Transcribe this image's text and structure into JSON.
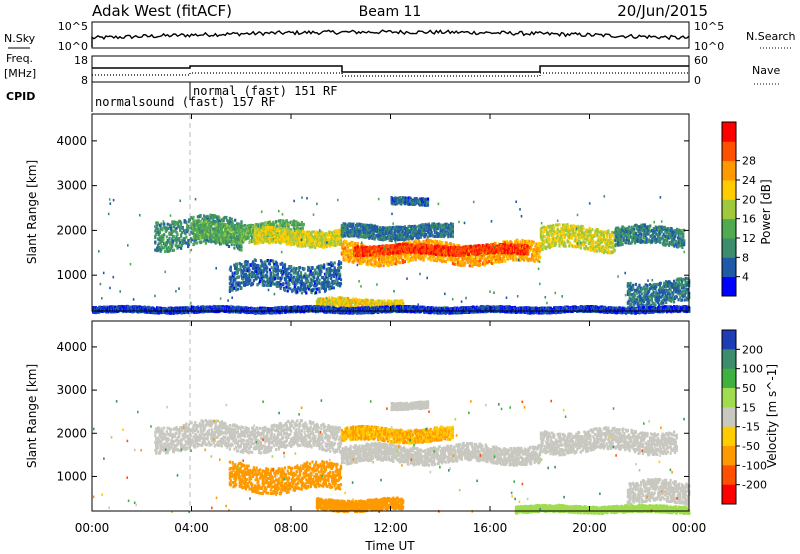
{
  "header": {
    "left_title": "Adak West (fitACF)",
    "center_title": "Beam 11",
    "right_title": "20/Jun/2015"
  },
  "nsky_panel": {
    "left_label": "N.Sky",
    "right_label": "N.Search",
    "left_ticks": [
      "10^5",
      "10^0"
    ],
    "right_ticks": [
      "10^5",
      "10^0"
    ]
  },
  "freq_panel": {
    "left_label_line1": "Freq.",
    "left_label_line2": "[MHz]",
    "left_ticks": [
      "18",
      "8"
    ],
    "right_label": "Nave",
    "right_ticks": [
      "60",
      "0"
    ]
  },
  "cpid": {
    "label": "CPID",
    "segments": [
      {
        "text": "normalsound (fast) 157 RF"
      },
      {
        "text": "normal (fast) 151 RF"
      }
    ]
  },
  "chart_data": [
    {
      "type": "heatmap",
      "name": "power",
      "ylabel": "Slant Range [km]",
      "yticks": [
        1000,
        2000,
        3000,
        4000
      ],
      "ylim": [
        200,
        4600
      ],
      "xlim": [
        0,
        24
      ],
      "colorbar_label": "Power [dB]",
      "colorbar_ticks": [
        "4",
        "8",
        "12",
        "16",
        "20",
        "24",
        "28"
      ],
      "colorbar_colors": [
        "#0000ff",
        "#1e5aa8",
        "#3c8c6e",
        "#50aa50",
        "#a0c83c",
        "#ffcc00",
        "#ff9900",
        "#ff5000",
        "#ff0000"
      ],
      "echo_bands": [
        {
          "t0": 2.5,
          "t1": 6.0,
          "r0": 1650,
          "r1": 2300,
          "level": 9
        },
        {
          "t0": 4.0,
          "t1": 8.5,
          "r0": 1800,
          "r1": 2200,
          "level": 12
        },
        {
          "t0": 6.5,
          "t1": 10.0,
          "r0": 1700,
          "r1": 2050,
          "level": 18
        },
        {
          "t0": 10.0,
          "t1": 14.5,
          "r0": 1850,
          "r1": 2150,
          "level": 7
        },
        {
          "t0": 10.0,
          "t1": 18.0,
          "r0": 1300,
          "r1": 1750,
          "level": 22
        },
        {
          "t0": 10.5,
          "t1": 17.5,
          "r0": 1500,
          "r1": 1700,
          "level": 27
        },
        {
          "t0": 12.0,
          "t1": 13.5,
          "r0": 2600,
          "r1": 2750,
          "level": 6
        },
        {
          "t0": 18.0,
          "t1": 21.0,
          "r0": 1600,
          "r1": 2100,
          "level": 17
        },
        {
          "t0": 21.0,
          "t1": 23.8,
          "r0": 1700,
          "r1": 2100,
          "level": 8
        },
        {
          "t0": 5.5,
          "t1": 10.0,
          "r0": 700,
          "r1": 1300,
          "level": 6
        },
        {
          "t0": 9.0,
          "t1": 12.5,
          "r0": 250,
          "r1": 500,
          "level": 19
        },
        {
          "t0": 21.5,
          "t1": 24.0,
          "r0": 400,
          "r1": 900,
          "level": 7
        },
        {
          "t0": 0.0,
          "t1": 24.0,
          "r0": 200,
          "r1": 320,
          "level": 4
        }
      ]
    },
    {
      "type": "heatmap",
      "name": "velocity",
      "ylabel": "Slant Range [km]",
      "yticks": [
        1000,
        2000,
        3000,
        4000
      ],
      "ylim": [
        200,
        4600
      ],
      "xlim": [
        0,
        24
      ],
      "xticks": [
        "00:00",
        "04:00",
        "08:00",
        "12:00",
        "16:00",
        "20:00",
        "00:00"
      ],
      "xlabel": "Time UT",
      "colorbar_label": "Velocity [m s^-1]",
      "colorbar_ticks": [
        "200",
        "100",
        "50",
        "15",
        "-15",
        "-50",
        "-100",
        "-200"
      ],
      "colorbar_colors": [
        "#1e3cb4",
        "#3c8c6e",
        "#40b040",
        "#a0dc50",
        "#c8c8c0",
        "#ffcc00",
        "#ff9900",
        "#ff5000",
        "#ff0000"
      ],
      "echo_bands": [
        {
          "t0": 2.5,
          "t1": 10.0,
          "r0": 1650,
          "r1": 2250,
          "level": 0
        },
        {
          "t0": 10.0,
          "t1": 18.0,
          "r0": 1350,
          "r1": 1750,
          "level": 0
        },
        {
          "t0": 10.0,
          "t1": 14.5,
          "r0": 1850,
          "r1": 2150,
          "level": -30
        },
        {
          "t0": 12.0,
          "t1": 13.5,
          "r0": 2600,
          "r1": 2750,
          "level": 0
        },
        {
          "t0": 18.0,
          "t1": 23.5,
          "r0": 1600,
          "r1": 2100,
          "level": 0
        },
        {
          "t0": 5.5,
          "t1": 10.0,
          "r0": 700,
          "r1": 1300,
          "level": -60
        },
        {
          "t0": 9.0,
          "t1": 12.5,
          "r0": 250,
          "r1": 500,
          "level": -40
        },
        {
          "t0": 21.5,
          "t1": 24.0,
          "r0": 400,
          "r1": 900,
          "level": 0
        },
        {
          "t0": 17.0,
          "t1": 24.0,
          "r0": 200,
          "r1": 350,
          "level": 20
        }
      ]
    }
  ]
}
